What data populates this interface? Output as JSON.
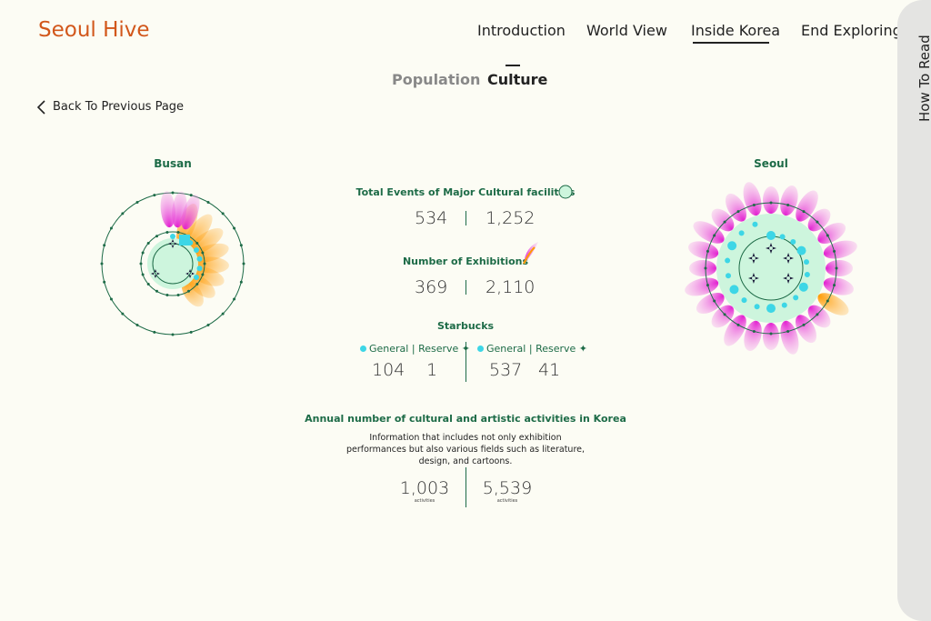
{
  "header": {
    "logo": "Seoul Hive",
    "nav": [
      "Introduction",
      "World View",
      "Inside Korea",
      "End Exploring"
    ]
  },
  "tabs": [
    "Population",
    "Culture"
  ],
  "back": "Back To Previous Page",
  "side_tab": "How To Read",
  "cities": [
    "Busan",
    "Seoul"
  ],
  "stats": {
    "events": {
      "title": "Total Events of Major Cultural facilities",
      "values": [
        "534",
        "1,252"
      ]
    },
    "exhibitions": {
      "title": "Number of Exhibitions",
      "values": [
        "369",
        "2,110"
      ]
    },
    "starbucks": {
      "title": "Starbucks",
      "legend": [
        "General",
        "Reserve"
      ],
      "busan": [
        "104",
        "1"
      ],
      "seoul": [
        "537",
        "41"
      ]
    },
    "activities": {
      "title": "Annual number of cultural and artistic activities in Korea",
      "description": "Information that includes not only exhibition performances but also various fields such as literature, design, and cartoons.",
      "values": [
        "1,003",
        "5,539"
      ],
      "unit": "activities"
    }
  }
}
